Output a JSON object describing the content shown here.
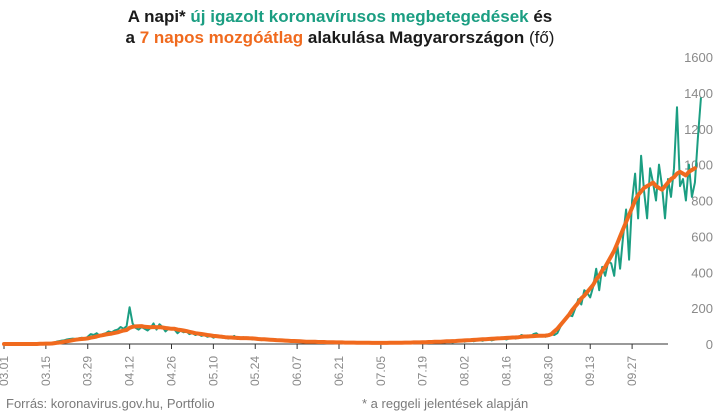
{
  "title": {
    "line1": {
      "p1": "A napi* ",
      "p2": "új igazolt koronavírusos megbetegedések",
      "p3": " és"
    },
    "line2": {
      "p1": "a ",
      "p2": "7 napos mozgóátlag",
      "p3": " alakulása Magyarországon",
      "p4": " (fő)"
    }
  },
  "source": "Forrás: koronavirus.gov.hu, Portfolio",
  "footnote": "* a reggeli jelentések alapján",
  "colors": {
    "daily": "#1b9e82",
    "avg": "#f06a1e",
    "axis": "#333333",
    "text_muted": "#8a8a8a"
  },
  "chart_data": {
    "type": "line",
    "x_start": "03.01",
    "x_ticks": [
      "03.01",
      "03.15",
      "03.29",
      "04.12",
      "04.26",
      "05.10",
      "05.24",
      "06.07",
      "06.21",
      "07.05",
      "07.19",
      "08.02",
      "08.16",
      "08.30",
      "09.13",
      "09.27"
    ],
    "x_tick_interval_days": 14,
    "ylim": [
      0,
      1600
    ],
    "yticks": [
      0,
      200,
      400,
      600,
      800,
      1000,
      1200,
      1400,
      1600
    ],
    "series": [
      {
        "id": "daily",
        "values": [
          0,
          0,
          0,
          0,
          0,
          0,
          0,
          0,
          0,
          0,
          1,
          2,
          3,
          3,
          4,
          5,
          7,
          10,
          15,
          18,
          20,
          25,
          28,
          30,
          28,
          32,
          35,
          30,
          40,
          55,
          50,
          60,
          45,
          55,
          60,
          70,
          65,
          75,
          80,
          95,
          85,
          100,
          205,
          115,
          90,
          80,
          95,
          85,
          75,
          90,
          115,
          80,
          110,
          95,
          70,
          85,
          90,
          80,
          60,
          75,
          65,
          70,
          55,
          60,
          50,
          55,
          45,
          50,
          40,
          45,
          35,
          42,
          38,
          35,
          40,
          30,
          36,
          45,
          28,
          33,
          38,
          30,
          35,
          25,
          30,
          28,
          22,
          26,
          30,
          20,
          24,
          26,
          18,
          22,
          20,
          15,
          18,
          20,
          15,
          12,
          14,
          16,
          10,
          12,
          14,
          11,
          9,
          12,
          10,
          8,
          11,
          9,
          7,
          8,
          10,
          6,
          8,
          7,
          9,
          5,
          6,
          8,
          5,
          7,
          6,
          5,
          9,
          4,
          6,
          5,
          7,
          8,
          6,
          5,
          10,
          4,
          6,
          8,
          12,
          9,
          5,
          11,
          7,
          14,
          8,
          15,
          10,
          8,
          12,
          14,
          9,
          12,
          15,
          20,
          13,
          18,
          25,
          15,
          20,
          22,
          18,
          25,
          30,
          20,
          24,
          28,
          35,
          30,
          25,
          32,
          40,
          30,
          35,
          50,
          45,
          48,
          40,
          55,
          60,
          45,
          50,
          40,
          45,
          55,
          50,
          60,
          95,
          120,
          150,
          160,
          155,
          200,
          250,
          220,
          300,
          285,
          260,
          320,
          420,
          300,
          430,
          380,
          460,
          450,
          380,
          560,
          420,
          600,
          750,
          470,
          800,
          950,
          700,
          1050,
          850,
          700,
          980,
          900,
          800,
          1000,
          880,
          700,
          920,
          820,
          980,
          1320,
          880,
          920,
          800,
          1000,
          820,
          900,
          1150,
          1370
        ]
      },
      {
        "id": "avg",
        "values": [
          0,
          0,
          0,
          0,
          0,
          0,
          0,
          0,
          0,
          0,
          0,
          0,
          1,
          1,
          2,
          2,
          3,
          5,
          7,
          9,
          12,
          15,
          18,
          21,
          24,
          26,
          28,
          29,
          31,
          35,
          38,
          42,
          46,
          49,
          53,
          56,
          58,
          62,
          65,
          70,
          75,
          78,
          90,
          96,
          98,
          99,
          100,
          96,
          95,
          93,
          95,
          93,
          94,
          92,
          89,
          87,
          85,
          85,
          80,
          78,
          75,
          72,
          68,
          64,
          60,
          58,
          56,
          53,
          50,
          48,
          45,
          44,
          42,
          40,
          38,
          37,
          36,
          35,
          34,
          33,
          33,
          33,
          32,
          31,
          30,
          28,
          27,
          26,
          25,
          24,
          23,
          22,
          21,
          20,
          19,
          18,
          17,
          17,
          16,
          15,
          14,
          13,
          13,
          12,
          12,
          11,
          11,
          11,
          10,
          10,
          10,
          9,
          9,
          9,
          8,
          8,
          8,
          8,
          7,
          7,
          7,
          7,
          7,
          6,
          6,
          6,
          6,
          6,
          6,
          7,
          7,
          7,
          7,
          7,
          8,
          8,
          8,
          9,
          9,
          9,
          10,
          10,
          11,
          11,
          12,
          13,
          13,
          14,
          15,
          15,
          16,
          17,
          18,
          19,
          20,
          21,
          22,
          23,
          24,
          25,
          26,
          27,
          28,
          29,
          30,
          31,
          32,
          33,
          34,
          35,
          36,
          37,
          38,
          40,
          42,
          42,
          43,
          44,
          45,
          46,
          46,
          47,
          49,
          55,
          70,
          85,
          105,
          125,
          145,
          165,
          190,
          210,
          230,
          255,
          270,
          290,
          310,
          330,
          360,
          380,
          410,
          430,
          460,
          490,
          520,
          560,
          600,
          640,
          680,
          720,
          760,
          800,
          830,
          850,
          870,
          880,
          890,
          900,
          880,
          870,
          860,
          880,
          900,
          920,
          930,
          950,
          960,
          950,
          940,
          960,
          970,
          980
        ]
      }
    ]
  }
}
